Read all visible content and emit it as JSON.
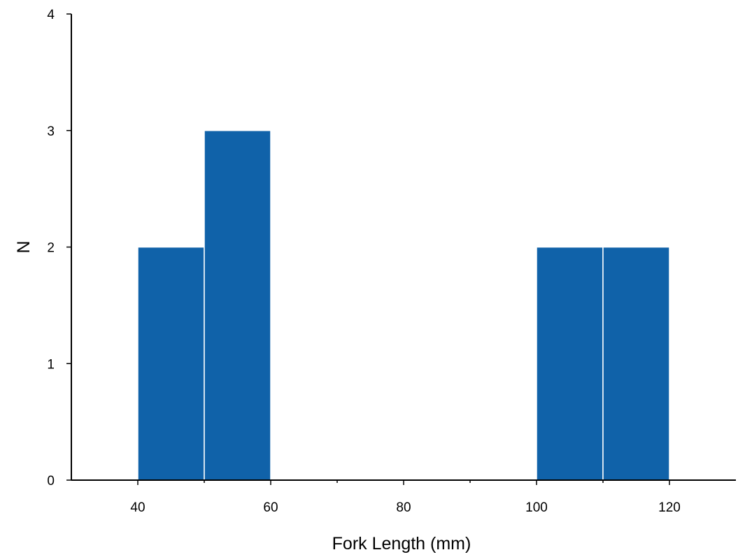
{
  "chart_data": {
    "type": "bar",
    "subtype": "histogram",
    "title": "",
    "xlabel": "Fork Length (mm)",
    "ylabel": "N",
    "xlim": [
      30,
      130
    ],
    "ylim": [
      0,
      4
    ],
    "x_ticks": [
      40,
      60,
      80,
      100,
      120
    ],
    "x_tick_labels": [
      "40",
      "60",
      "80",
      "100",
      "120"
    ],
    "x_minor_ticks": [
      50,
      70,
      90,
      110
    ],
    "y_ticks": [
      0,
      1,
      2,
      3,
      4
    ],
    "y_tick_labels": [
      "0",
      "1",
      "2",
      "3",
      "4"
    ],
    "bins": [
      {
        "start": 40,
        "end": 50,
        "count": 2
      },
      {
        "start": 50,
        "end": 60,
        "count": 3
      },
      {
        "start": 100,
        "end": 110,
        "count": 2
      },
      {
        "start": 110,
        "end": 120,
        "count": 2
      }
    ],
    "bar_color": "#1062a9",
    "grid": false,
    "legend": "none"
  }
}
